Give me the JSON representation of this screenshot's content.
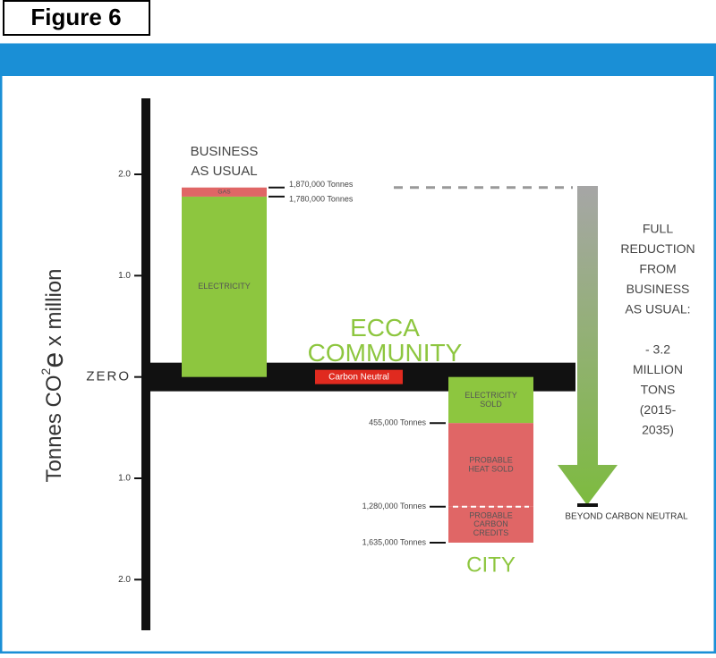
{
  "figure_label": "Figure 6",
  "chart_data": {
    "type": "stacked-bar",
    "y_label": [
      "Tonnes CO",
      "2",
      "e",
      " x million"
    ],
    "ylim": [
      -2.5,
      2.75
    ],
    "yticks": [
      {
        "value": 2,
        "label": "2.0"
      },
      {
        "value": 1,
        "label": "1.0"
      },
      {
        "value": 0,
        "label": "ZERO"
      },
      {
        "value": -1,
        "label": "1.0"
      },
      {
        "value": -2,
        "label": "2.0"
      }
    ],
    "zero_label": "Carbon Neutral",
    "community_label": [
      "ECCA",
      "COMMUNITY"
    ],
    "bars": [
      {
        "label": [
          "BUSINESS",
          "AS USUAL"
        ],
        "segments": [
          {
            "name": [
              "ELECTRICITY"
            ],
            "value": 1.78,
            "color": "#8dc63f"
          },
          {
            "name": [
              "GAS"
            ],
            "value": 0.09,
            "color": "#e06666"
          }
        ],
        "levels": [
          {
            "value": 1.87,
            "label": "1,870,000 Tonnes"
          },
          {
            "value": 1.78,
            "label": "1,780,000 Tonnes"
          }
        ]
      },
      {
        "label": [
          "CITY"
        ],
        "segments": [
          {
            "name": [
              "ELECTRICITY",
              "SOLD"
            ],
            "value": -0.455,
            "color": "#8dc63f"
          },
          {
            "name": [
              "PROBABLE",
              "HEAT SOLD"
            ],
            "value": -0.825,
            "color": "#e06666"
          },
          {
            "name": [
              "PROBABLE",
              "CARBON",
              "CREDITS"
            ],
            "value": -0.355,
            "color": "#e06666"
          }
        ],
        "levels": [
          {
            "value": -0.455,
            "label": "455,000 Tonnes"
          },
          {
            "value": -1.28,
            "label": "1,280,000 Tonnes"
          },
          {
            "value": -1.635,
            "label": "1,635,000 Tonnes"
          }
        ]
      }
    ],
    "reduction_label": [
      "FULL",
      "REDUCTION",
      "FROM",
      "BUSINESS",
      "AS USUAL:",
      "",
      "- 3.2",
      "MILLION",
      "TONS",
      "(2015-",
      "2035)"
    ],
    "beyond_label": "BEYOND CARBON NEUTRAL"
  }
}
